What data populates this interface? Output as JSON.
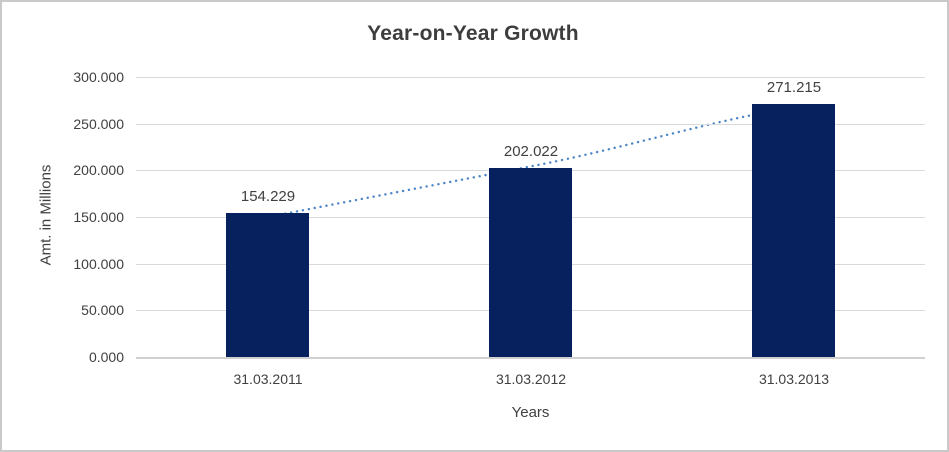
{
  "chart_data": {
    "type": "bar",
    "title": "Year-on-Year Growth",
    "xlabel": "Years",
    "ylabel": "Amt. in Millions",
    "categories": [
      "31.03.2011",
      "31.03.2012",
      "31.03.2013"
    ],
    "values": [
      154.229,
      202.022,
      271.215
    ],
    "data_labels": [
      "154.229",
      "202.022",
      "271.215"
    ],
    "ylim": [
      0,
      300
    ],
    "ytick_step": 50,
    "ytick_labels": [
      "0.000",
      "50.000",
      "100.000",
      "150.000",
      "200.000",
      "250.000",
      "300.000"
    ],
    "grid": true,
    "legend": "none",
    "bar_color": "#07215f",
    "gridline_color": "#dadada",
    "axis_text_color": "#404040",
    "title_color": "#3d3d3d",
    "trendline": {
      "style": "dotted",
      "color": "#4e86c6"
    }
  }
}
